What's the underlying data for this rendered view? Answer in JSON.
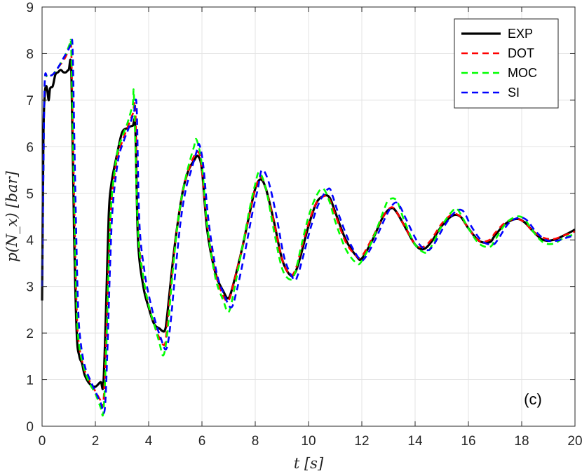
{
  "chart_data": {
    "type": "line",
    "xlabel": "t [s]",
    "ylabel": "p(N_x) [bar]",
    "xlim": [
      0,
      20
    ],
    "ylim": [
      0,
      9
    ],
    "xticks": [
      0,
      2,
      4,
      6,
      8,
      10,
      12,
      14,
      16,
      18,
      20
    ],
    "yticks": [
      0,
      1,
      2,
      3,
      4,
      5,
      6,
      7,
      8,
      9
    ],
    "grid": true,
    "legend_position": "top-right",
    "annotation": "(c)",
    "series": [
      {
        "name": "EXP",
        "color": "#000000",
        "dash": "solid",
        "x": [
          0,
          0.05,
          0.1,
          0.15,
          0.2,
          0.25,
          0.3,
          0.4,
          0.5,
          0.6,
          0.7,
          0.8,
          0.9,
          1.0,
          1.1,
          1.2,
          1.3,
          1.4,
          1.5,
          1.6,
          1.8,
          2.0,
          2.2,
          2.3,
          2.4,
          2.5,
          2.6,
          2.8,
          3.0,
          3.2,
          3.4,
          3.5,
          3.6,
          3.8,
          4.0,
          4.2,
          4.4,
          4.6,
          4.7,
          4.9,
          5.1,
          5.3,
          5.5,
          5.7,
          5.85,
          6.0,
          6.2,
          6.5,
          6.8,
          7.0,
          7.2,
          7.5,
          7.8,
          8.0,
          8.2,
          8.4,
          8.7,
          9.0,
          9.3,
          9.5,
          9.7,
          10.0,
          10.3,
          10.6,
          10.8,
          11.0,
          11.4,
          11.8,
          12.0,
          12.4,
          12.8,
          13.1,
          13.3,
          13.6,
          14.0,
          14.3,
          14.6,
          15.0,
          15.4,
          15.7,
          16.0,
          16.4,
          16.8,
          17.0,
          17.4,
          17.8,
          18.1,
          18.4,
          18.8,
          19.2,
          19.6,
          20.0
        ],
        "y": [
          2.7,
          6.2,
          7.1,
          7.3,
          7.2,
          7.0,
          7.25,
          7.3,
          7.55,
          7.6,
          7.65,
          7.6,
          7.6,
          7.65,
          7.6,
          4.2,
          2.0,
          1.5,
          1.35,
          1.1,
          0.9,
          0.85,
          0.95,
          0.9,
          2.5,
          4.5,
          5.2,
          5.8,
          6.3,
          6.4,
          6.45,
          6.4,
          4.0,
          3.0,
          2.55,
          2.2,
          2.1,
          2.05,
          2.4,
          3.5,
          4.4,
          5.1,
          5.5,
          5.7,
          5.8,
          5.5,
          4.2,
          3.3,
          2.9,
          2.75,
          3.1,
          3.8,
          4.6,
          5.1,
          5.3,
          5.1,
          4.4,
          3.6,
          3.25,
          3.3,
          3.65,
          4.3,
          4.8,
          4.95,
          4.9,
          4.6,
          4.0,
          3.65,
          3.6,
          4.0,
          4.5,
          4.68,
          4.6,
          4.3,
          3.9,
          3.8,
          3.95,
          4.3,
          4.52,
          4.5,
          4.25,
          3.98,
          3.95,
          4.1,
          4.35,
          4.45,
          4.38,
          4.2,
          4.0,
          4.0,
          4.1,
          4.22
        ]
      },
      {
        "name": "DOT",
        "color": "#ff0000",
        "dash": "dashed",
        "x": [
          0,
          0.05,
          0.1,
          0.2,
          0.4,
          0.6,
          0.8,
          0.9,
          1.0,
          1.05,
          1.1,
          1.2,
          1.3,
          1.4,
          1.6,
          1.8,
          2.0,
          2.2,
          2.3,
          2.4,
          2.5,
          2.6,
          2.8,
          3.0,
          3.2,
          3.4,
          3.5,
          3.6,
          3.8,
          4.0,
          4.2,
          4.4,
          4.6,
          4.7,
          4.9,
          5.1,
          5.3,
          5.5,
          5.75,
          5.9,
          6.0,
          6.2,
          6.5,
          6.8,
          7.0,
          7.2,
          7.5,
          7.8,
          8.0,
          8.2,
          8.4,
          8.7,
          9.0,
          9.3,
          9.5,
          9.7,
          10.0,
          10.3,
          10.65,
          10.8,
          11.0,
          11.4,
          11.8,
          12.0,
          12.4,
          12.8,
          13.1,
          13.3,
          13.6,
          14.0,
          14.3,
          14.6,
          15.0,
          15.4,
          15.7,
          16.0,
          16.4,
          16.8,
          17.0,
          17.4,
          17.8,
          18.1,
          18.4,
          18.8,
          19.2,
          19.6,
          20.0
        ],
        "y": [
          3.0,
          5.5,
          7.4,
          7.5,
          7.55,
          7.7,
          7.85,
          7.95,
          8.1,
          8.15,
          8.0,
          5.0,
          2.5,
          1.7,
          1.2,
          0.95,
          0.75,
          0.55,
          0.5,
          1.8,
          3.5,
          4.8,
          5.7,
          6.1,
          6.4,
          6.7,
          6.8,
          4.3,
          3.2,
          2.6,
          2.2,
          1.9,
          1.75,
          2.2,
          3.4,
          4.4,
          5.1,
          5.5,
          5.85,
          5.85,
          5.5,
          4.3,
          3.3,
          2.8,
          2.7,
          3.1,
          3.8,
          4.6,
          5.1,
          5.35,
          5.1,
          4.4,
          3.6,
          3.25,
          3.35,
          3.75,
          4.35,
          4.8,
          4.95,
          4.85,
          4.55,
          3.95,
          3.65,
          3.65,
          4.05,
          4.5,
          4.7,
          4.6,
          4.3,
          3.9,
          3.85,
          4.0,
          4.35,
          4.55,
          4.5,
          4.25,
          3.98,
          4.0,
          4.15,
          4.38,
          4.45,
          4.38,
          4.2,
          4.05,
          4.02,
          4.1,
          4.18
        ]
      },
      {
        "name": "MOC",
        "color": "#00ff00",
        "dash": "dashed",
        "x": [
          0,
          0.05,
          0.1,
          0.2,
          0.4,
          0.6,
          0.8,
          0.9,
          1.0,
          1.05,
          1.1,
          1.2,
          1.3,
          1.4,
          1.6,
          1.8,
          2.0,
          2.2,
          2.3,
          2.4,
          2.5,
          2.6,
          2.8,
          3.0,
          3.2,
          3.4,
          3.45,
          3.6,
          3.8,
          4.0,
          4.2,
          4.4,
          4.55,
          4.7,
          4.9,
          5.1,
          5.3,
          5.5,
          5.7,
          5.8,
          6.0,
          6.2,
          6.5,
          6.8,
          7.0,
          7.2,
          7.5,
          7.8,
          8.0,
          8.15,
          8.4,
          8.7,
          9.0,
          9.3,
          9.5,
          9.7,
          10.0,
          10.3,
          10.55,
          10.8,
          11.0,
          11.4,
          11.8,
          12.0,
          12.4,
          12.8,
          13.0,
          13.3,
          13.6,
          14.0,
          14.4,
          14.6,
          15.0,
          15.4,
          15.6,
          16.0,
          16.4,
          16.8,
          17.0,
          17.4,
          17.8,
          18.1,
          18.4,
          18.8,
          19.2,
          19.6,
          20.0
        ],
        "y": [
          3.0,
          5.5,
          7.4,
          7.5,
          7.55,
          7.7,
          7.9,
          8.0,
          8.15,
          8.2,
          8.0,
          5.0,
          2.5,
          1.7,
          1.2,
          0.9,
          0.7,
          0.4,
          0.3,
          1.5,
          3.4,
          4.8,
          5.8,
          6.2,
          6.5,
          6.9,
          7.05,
          4.2,
          3.2,
          2.6,
          2.2,
          1.8,
          1.52,
          2.0,
          3.3,
          4.4,
          5.1,
          5.6,
          6.0,
          6.15,
          5.6,
          4.3,
          3.2,
          2.7,
          2.45,
          2.9,
          3.8,
          4.7,
          5.2,
          5.45,
          5.1,
          4.2,
          3.4,
          3.15,
          3.3,
          3.8,
          4.5,
          4.95,
          5.1,
          4.8,
          4.4,
          3.8,
          3.5,
          3.55,
          4.0,
          4.6,
          4.85,
          4.85,
          4.4,
          3.9,
          3.72,
          3.85,
          4.3,
          4.62,
          4.65,
          4.25,
          3.92,
          3.85,
          4.0,
          4.35,
          4.5,
          4.45,
          4.2,
          3.95,
          3.92,
          4.05,
          4.12
        ]
      },
      {
        "name": "SI",
        "color": "#0000ff",
        "dash": "dashed",
        "x": [
          0,
          0.05,
          0.1,
          0.2,
          0.4,
          0.6,
          0.8,
          0.9,
          1.0,
          1.1,
          1.15,
          1.25,
          1.35,
          1.45,
          1.6,
          1.8,
          2.0,
          2.2,
          2.35,
          2.45,
          2.55,
          2.65,
          2.85,
          3.05,
          3.25,
          3.45,
          3.55,
          3.65,
          3.85,
          4.05,
          4.25,
          4.45,
          4.65,
          4.8,
          5.0,
          5.2,
          5.4,
          5.6,
          5.8,
          5.9,
          6.05,
          6.25,
          6.55,
          6.85,
          7.1,
          7.3,
          7.6,
          7.9,
          8.1,
          8.25,
          8.5,
          8.8,
          9.1,
          9.45,
          9.6,
          9.8,
          10.1,
          10.4,
          10.75,
          10.9,
          11.1,
          11.5,
          11.9,
          12.1,
          12.5,
          12.9,
          13.2,
          13.4,
          13.7,
          14.1,
          14.45,
          14.7,
          15.1,
          15.5,
          15.8,
          16.1,
          16.5,
          16.9,
          17.1,
          17.5,
          17.9,
          18.2,
          18.5,
          18.9,
          19.3,
          19.7,
          20.0
        ],
        "y": [
          3.0,
          5.4,
          7.4,
          7.5,
          7.55,
          7.7,
          7.9,
          8.0,
          8.1,
          8.2,
          8.0,
          5.0,
          2.6,
          1.8,
          1.3,
          1.0,
          0.75,
          0.5,
          0.35,
          1.6,
          3.4,
          4.7,
          5.7,
          6.1,
          6.4,
          6.75,
          6.85,
          4.4,
          3.3,
          2.7,
          2.25,
          1.9,
          1.65,
          2.1,
          3.3,
          4.4,
          5.1,
          5.5,
          5.9,
          6.05,
          5.6,
          4.4,
          3.3,
          2.8,
          2.55,
          2.9,
          3.7,
          4.6,
          5.1,
          5.5,
          5.25,
          4.5,
          3.6,
          3.15,
          3.25,
          3.65,
          4.3,
          4.8,
          5.1,
          4.95,
          4.6,
          4.0,
          3.6,
          3.6,
          4.0,
          4.5,
          4.78,
          4.75,
          4.4,
          3.95,
          3.78,
          3.9,
          4.3,
          4.6,
          4.62,
          4.3,
          3.98,
          3.9,
          4.0,
          4.35,
          4.48,
          4.42,
          4.2,
          4.0,
          3.98,
          4.05,
          4.1
        ]
      }
    ]
  }
}
